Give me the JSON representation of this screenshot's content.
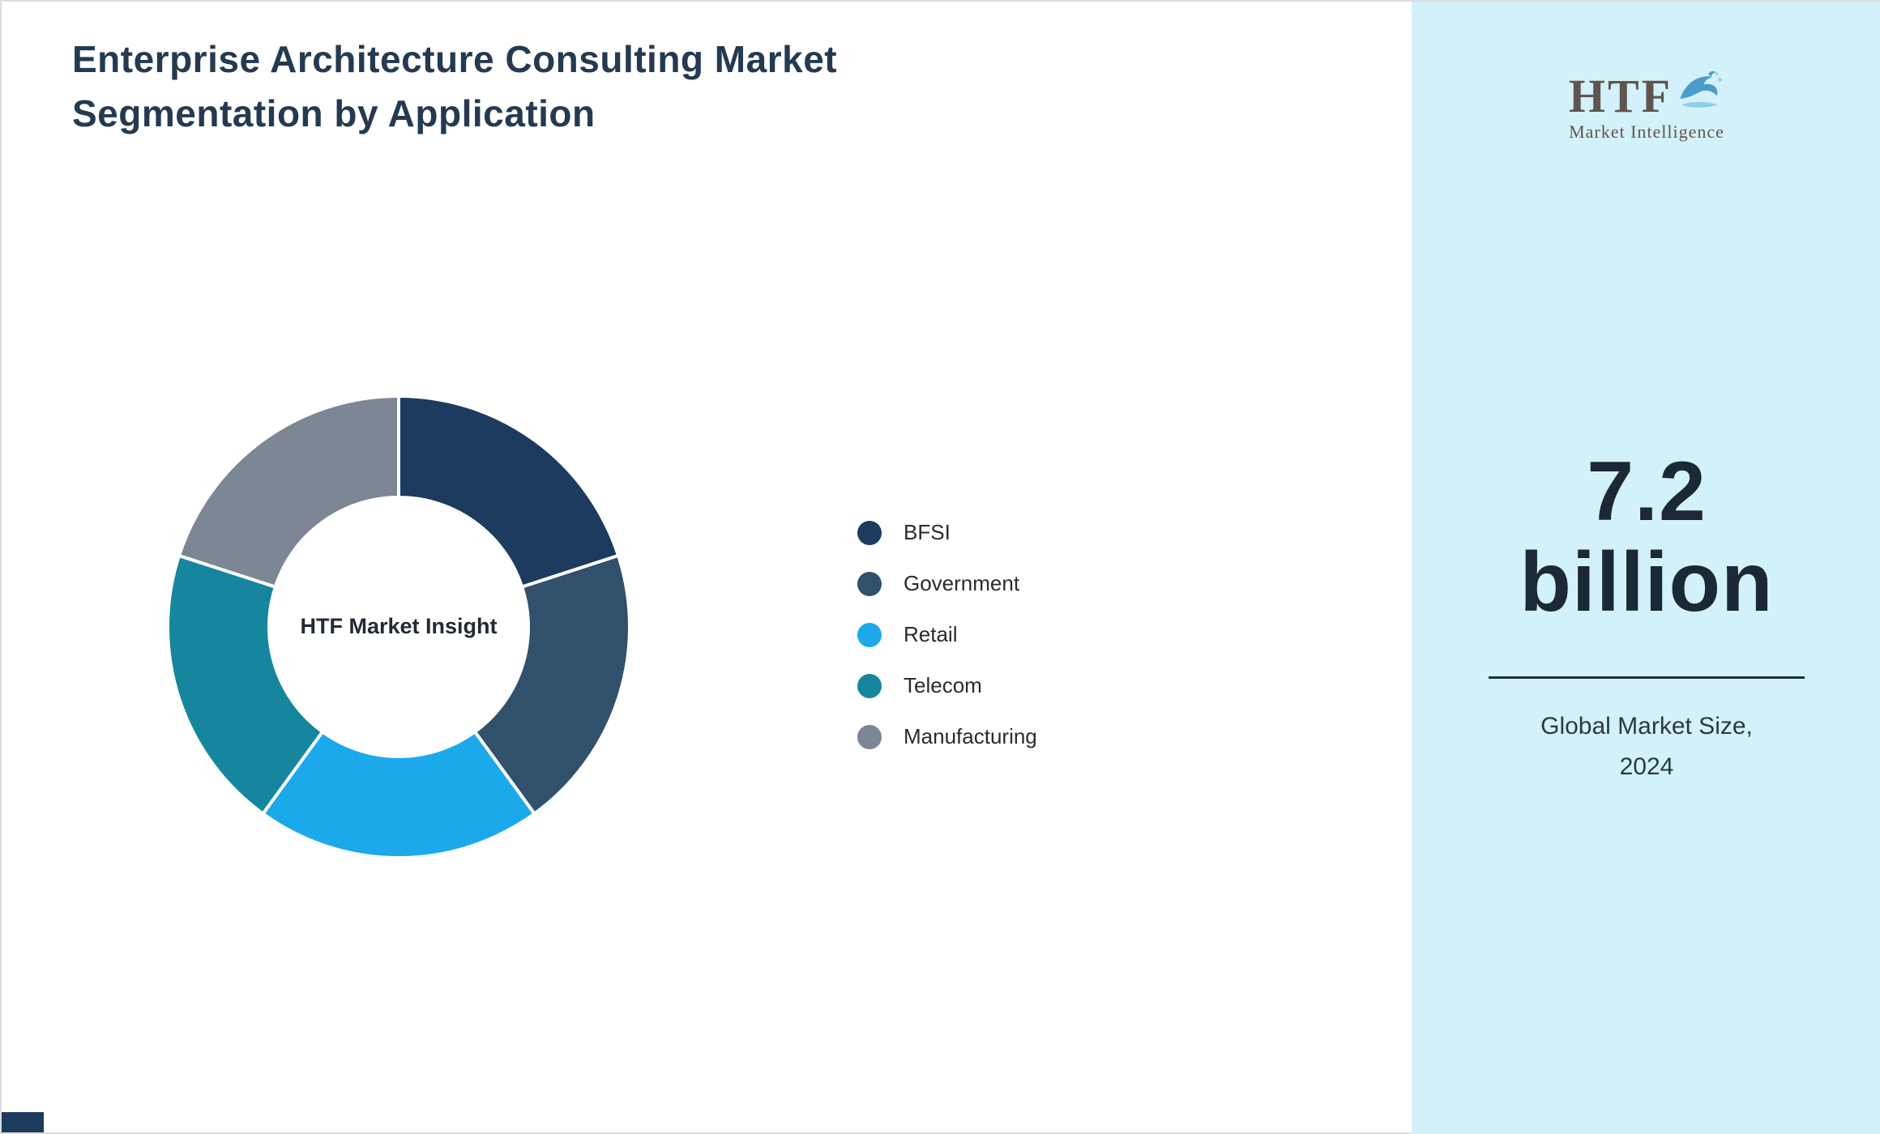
{
  "title": "Enterprise Architecture Consulting Market Segmentation by Application",
  "chart_data": {
    "type": "pie",
    "subtype": "donut",
    "title": "Enterprise Architecture Consulting Market Segmentation by Application",
    "center_label": "HTF Market Insight",
    "categories": [
      "BFSI",
      "Government",
      "Retail",
      "Telecom",
      "Manufacturing"
    ],
    "values": [
      20,
      20,
      20,
      20,
      20
    ],
    "colors": [
      "#1d3a5f",
      "#30506c",
      "#1ca9ec",
      "#16869e",
      "#7d8694"
    ],
    "legend_position": "right",
    "separator_color": "#ffffff"
  },
  "sidebar": {
    "background": "#d3f1fa",
    "logo": {
      "text": "HTF",
      "subtext": "Market Intelligence",
      "icon": "dolphin-icon"
    },
    "market_size_value": "7.2",
    "market_size_unit": "billion",
    "caption_line1": "Global Market Size,",
    "caption_line2": "2024"
  },
  "accents": {
    "corner_accent_color": "#1d3a5f"
  }
}
